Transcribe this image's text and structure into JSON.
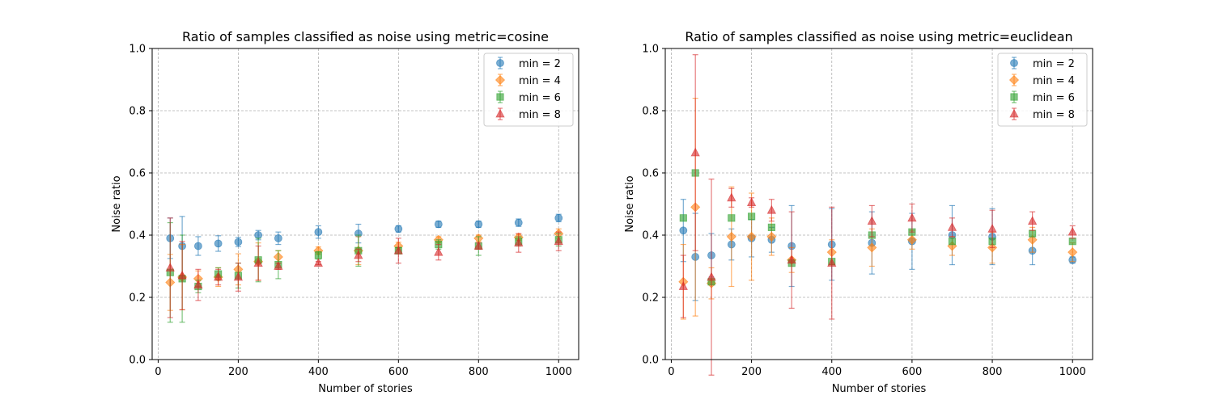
{
  "chart_data": [
    {
      "type": "scatter",
      "title": "Ratio of samples classified as noise using metric=cosine",
      "xlabel": "Number of stories",
      "ylabel": "Noise ratio",
      "xlim": [
        -15,
        1050
      ],
      "ylim": [
        0.0,
        1.0
      ],
      "xticks": [
        0,
        200,
        400,
        600,
        800,
        1000
      ],
      "yticks": [
        0.0,
        0.2,
        0.4,
        0.6,
        0.8,
        1.0
      ],
      "xtick_labels": [
        "0",
        "200",
        "400",
        "600",
        "800",
        "1000"
      ],
      "ytick_labels": [
        "0.0",
        "0.2",
        "0.4",
        "0.6",
        "0.8",
        "1.0"
      ],
      "grid": true,
      "legend_position": "top-right",
      "x": [
        30,
        60,
        100,
        150,
        200,
        250,
        300,
        400,
        500,
        600,
        700,
        800,
        900,
        1000
      ],
      "series": [
        {
          "name": "min = 2",
          "marker": "circle",
          "color": "#1f77b4",
          "values": [
            0.39,
            0.365,
            0.365,
            0.373,
            0.378,
            0.4,
            0.39,
            0.41,
            0.405,
            0.42,
            0.435,
            0.435,
            0.44,
            0.455
          ],
          "errors": [
            0.065,
            0.095,
            0.03,
            0.025,
            0.015,
            0.015,
            0.02,
            0.02,
            0.03,
            0.01,
            0.01,
            0.01,
            0.012,
            0.012
          ]
        },
        {
          "name": "min = 4",
          "marker": "diamond",
          "color": "#ff7f0e",
          "values": [
            0.248,
            0.265,
            0.26,
            0.265,
            0.29,
            0.315,
            0.33,
            0.35,
            0.35,
            0.365,
            0.385,
            0.39,
            0.393,
            0.405
          ],
          "errors": [
            0.09,
            0.105,
            0.025,
            0.03,
            0.05,
            0.06,
            0.02,
            0.012,
            0.045,
            0.012,
            0.01,
            0.01,
            0.01,
            0.015
          ]
        },
        {
          "name": "min = 6",
          "marker": "square",
          "color": "#2ca02c",
          "values": [
            0.28,
            0.26,
            0.235,
            0.275,
            0.27,
            0.32,
            0.305,
            0.335,
            0.35,
            0.35,
            0.37,
            0.365,
            0.38,
            0.385
          ],
          "errors": [
            0.16,
            0.14,
            0.02,
            0.02,
            0.04,
            0.07,
            0.045,
            0.012,
            0.05,
            0.01,
            0.015,
            0.03,
            0.015,
            0.02
          ]
        },
        {
          "name": "min = 8",
          "marker": "triangle",
          "color": "#d62728",
          "values": [
            0.295,
            0.27,
            0.24,
            0.265,
            0.265,
            0.31,
            0.3,
            0.31,
            0.335,
            0.35,
            0.345,
            0.365,
            0.375,
            0.38
          ],
          "errors": [
            0.16,
            0.11,
            0.05,
            0.025,
            0.045,
            0.055,
            0.01,
            0.005,
            0.02,
            0.04,
            0.025,
            0.01,
            0.03,
            0.03
          ]
        }
      ]
    },
    {
      "type": "scatter",
      "title": "Ratio of samples classified as noise using metric=euclidean",
      "xlabel": "Number of stories",
      "ylabel": "Noise ratio",
      "xlim": [
        -15,
        1050
      ],
      "ylim": [
        0.0,
        1.0
      ],
      "xticks": [
        0,
        200,
        400,
        600,
        800,
        1000
      ],
      "yticks": [
        0.0,
        0.2,
        0.4,
        0.6,
        0.8,
        1.0
      ],
      "xtick_labels": [
        "0",
        "200",
        "400",
        "600",
        "800",
        "1000"
      ],
      "ytick_labels": [
        "0.0",
        "0.2",
        "0.4",
        "0.6",
        "0.8",
        "1.0"
      ],
      "grid": true,
      "legend_position": "top-right",
      "x": [
        30,
        60,
        100,
        150,
        200,
        250,
        300,
        400,
        500,
        600,
        700,
        800,
        900,
        1000
      ],
      "series": [
        {
          "name": "min = 2",
          "marker": "circle",
          "color": "#1f77b4",
          "values": [
            0.415,
            0.33,
            0.335,
            0.37,
            0.39,
            0.385,
            0.365,
            0.37,
            0.375,
            0.38,
            0.4,
            0.395,
            0.35,
            0.32
          ],
          "errors": [
            0.1,
            0.14,
            0.07,
            0.05,
            0.06,
            0.04,
            0.13,
            0.115,
            0.1,
            0.09,
            0.095,
            0.09,
            0.045,
            0.01
          ]
        },
        {
          "name": "min = 4",
          "marker": "diamond",
          "color": "#ff7f0e",
          "values": [
            0.25,
            0.49,
            0.245,
            0.395,
            0.395,
            0.395,
            0.32,
            0.345,
            0.36,
            0.385,
            0.365,
            0.36,
            0.385,
            0.345
          ],
          "errors": [
            0.12,
            0.35,
            0.05,
            0.16,
            0.14,
            0.06,
            0.04,
            0.04,
            0.06,
            0.03,
            0.03,
            0.05,
            0.04,
            0.03
          ]
        },
        {
          "name": "min = 6",
          "marker": "square",
          "color": "#2ca02c",
          "values": [
            0.455,
            0.6,
            0.25,
            0.455,
            0.46,
            0.425,
            0.31,
            0.315,
            0.4,
            0.41,
            0.38,
            0.38,
            0.405,
            0.38
          ]
        },
        {
          "name": "min = 8",
          "marker": "triangle",
          "color": "#d62728",
          "values": [
            0.235,
            0.665,
            0.265,
            0.52,
            0.505,
            0.48,
            0.32,
            0.31,
            0.445,
            0.455,
            0.425,
            0.42,
            0.445,
            0.41
          ],
          "errors": [
            0.1,
            0.315,
            0.315,
            0.03,
            0.015,
            0.035,
            0.155,
            0.18,
            0.05,
            0.045,
            0.03,
            0.06,
            0.03,
            0.02
          ]
        }
      ]
    }
  ]
}
